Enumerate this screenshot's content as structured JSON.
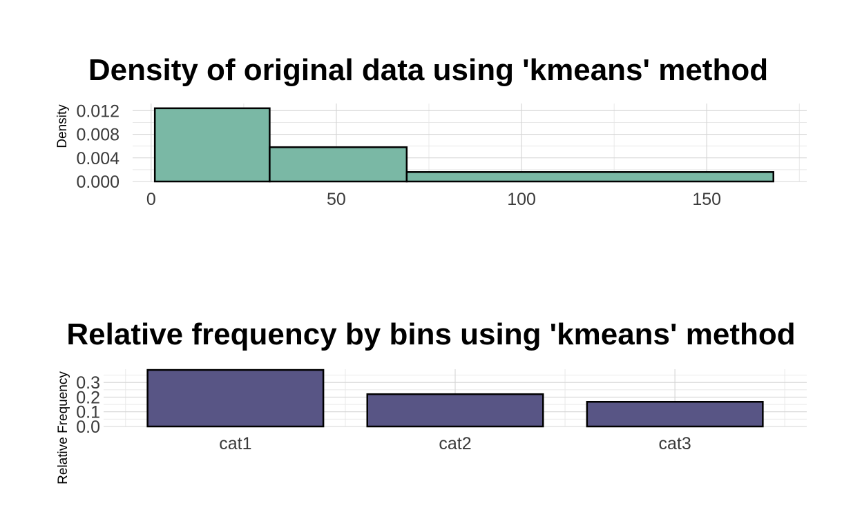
{
  "chart_data": [
    {
      "type": "bar",
      "title": "Density of original data using 'kmeans' method",
      "xlabel": "",
      "ylabel": "Density",
      "bins": [
        {
          "x0": 1,
          "x1": 32,
          "density": 0.0124
        },
        {
          "x0": 32,
          "x1": 69,
          "density": 0.0058
        },
        {
          "x0": 69,
          "x1": 168,
          "density": 0.0016
        }
      ],
      "xlim": [
        -5,
        177
      ],
      "ylim": [
        0,
        0.0132
      ],
      "xticks": [
        0,
        50,
        100,
        150
      ],
      "xtick_labels": [
        "0",
        "50",
        "100",
        "150"
      ],
      "yticks": [
        0,
        0.004,
        0.008,
        0.012
      ],
      "ytick_labels": [
        "0.000",
        "0.004",
        "0.008",
        "0.012"
      ],
      "grid": true,
      "fill_color": "#7ab8a5",
      "stroke_color": "#000000"
    },
    {
      "type": "bar",
      "title": "Relative frequency by bins using 'kmeans' method",
      "xlabel": "",
      "ylabel": "Relative Frequency",
      "categories": [
        "cat1",
        "cat2",
        "cat3"
      ],
      "values": [
        0.385,
        0.22,
        0.168
      ],
      "ylim": [
        0,
        0.39
      ],
      "yticks": [
        0,
        0.1,
        0.2,
        0.3
      ],
      "ytick_labels": [
        "0.0",
        "0.1",
        "0.2",
        "0.3"
      ],
      "grid": true,
      "fill_color": "#585585",
      "stroke_color": "#000000"
    }
  ]
}
